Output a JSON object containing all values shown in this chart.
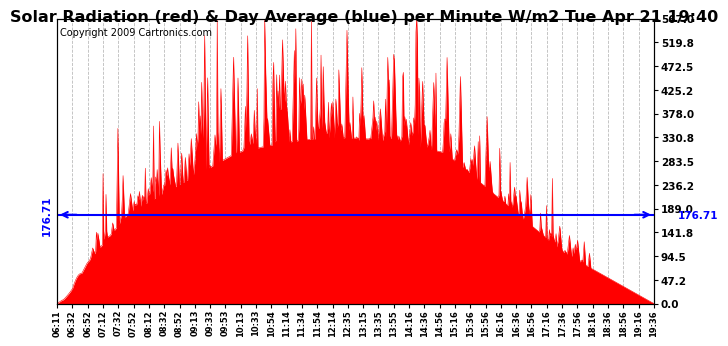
{
  "title": "Solar Radiation (red) & Day Average (blue) per Minute W/m2 Tue Apr 21 19:40",
  "copyright": "Copyright 2009 Cartronics.com",
  "day_average": 176.71,
  "ymax": 567.0,
  "ymin": 0.0,
  "yticks": [
    0.0,
    47.2,
    94.5,
    141.8,
    189.0,
    236.2,
    283.5,
    330.8,
    378.0,
    425.2,
    472.5,
    519.8,
    567.0
  ],
  "xtick_labels": [
    "06:11",
    "06:32",
    "06:52",
    "07:12",
    "07:32",
    "07:52",
    "08:12",
    "08:32",
    "08:52",
    "09:13",
    "09:33",
    "09:53",
    "10:13",
    "10:33",
    "10:54",
    "11:14",
    "11:34",
    "11:54",
    "12:14",
    "12:35",
    "13:15",
    "13:35",
    "13:55",
    "14:16",
    "14:36",
    "14:56",
    "15:16",
    "15:36",
    "15:56",
    "16:16",
    "16:36",
    "16:56",
    "17:16",
    "17:36",
    "17:56",
    "18:16",
    "18:36",
    "18:56",
    "19:16",
    "19:36"
  ],
  "bg_color": "#ffffff",
  "fill_color": "#ff0000",
  "avg_line_color": "#0000ff",
  "grid_color": "#bbbbbb",
  "title_fontsize": 11.5,
  "copyright_fontsize": 7,
  "avg_label_fontsize": 7.5
}
